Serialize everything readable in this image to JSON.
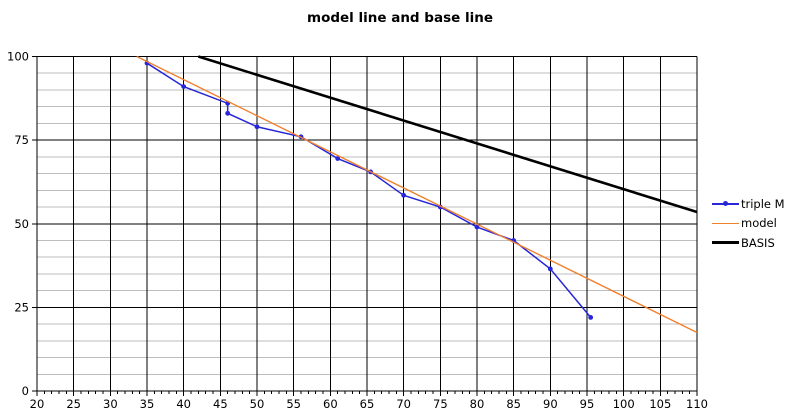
{
  "chart_data": {
    "type": "line",
    "title": "model line and base line",
    "xlabel": "",
    "ylabel": "",
    "xlim": [
      20,
      110
    ],
    "ylim": [
      0,
      100
    ],
    "x_tick_step": 5,
    "x_minor_tick_step": 1,
    "y_major_step": 25,
    "y_minor_step": 5,
    "grid": true,
    "legend_position": "right",
    "x_tick_labels": [
      20,
      25,
      30,
      35,
      40,
      45,
      50,
      55,
      60,
      65,
      70,
      75,
      80,
      85,
      90,
      95,
      100,
      105,
      110
    ],
    "y_tick_labels": [
      0,
      25,
      50,
      75,
      100
    ],
    "colors": {
      "major_grid": "#000000",
      "minor_grid": "#bdbdbd",
      "axis": "#000000",
      "background": "#ffffff"
    },
    "series": [
      {
        "name": "triple M",
        "color": "#2727d8",
        "marker": true,
        "line_width": 1.5,
        "points": [
          [
            35,
            98
          ],
          [
            40,
            91
          ],
          [
            46,
            86
          ],
          [
            46,
            83
          ],
          [
            50,
            79
          ],
          [
            56,
            76
          ],
          [
            61,
            69.5
          ],
          [
            65.5,
            65.5
          ],
          [
            70,
            58.5
          ],
          [
            75,
            55
          ],
          [
            80,
            49
          ],
          [
            85,
            45
          ],
          [
            90,
            36.5
          ],
          [
            95.5,
            22
          ]
        ]
      },
      {
        "name": "model",
        "color": "#f0812f",
        "marker": false,
        "line_width": 1.4,
        "points": [
          [
            33.6,
            100
          ],
          [
            110,
            17.5
          ]
        ]
      },
      {
        "name": "BASIS",
        "color": "#000000",
        "marker": false,
        "line_width": 2.6,
        "points": [
          [
            42,
            100
          ],
          [
            110,
            53.5
          ]
        ]
      }
    ]
  }
}
